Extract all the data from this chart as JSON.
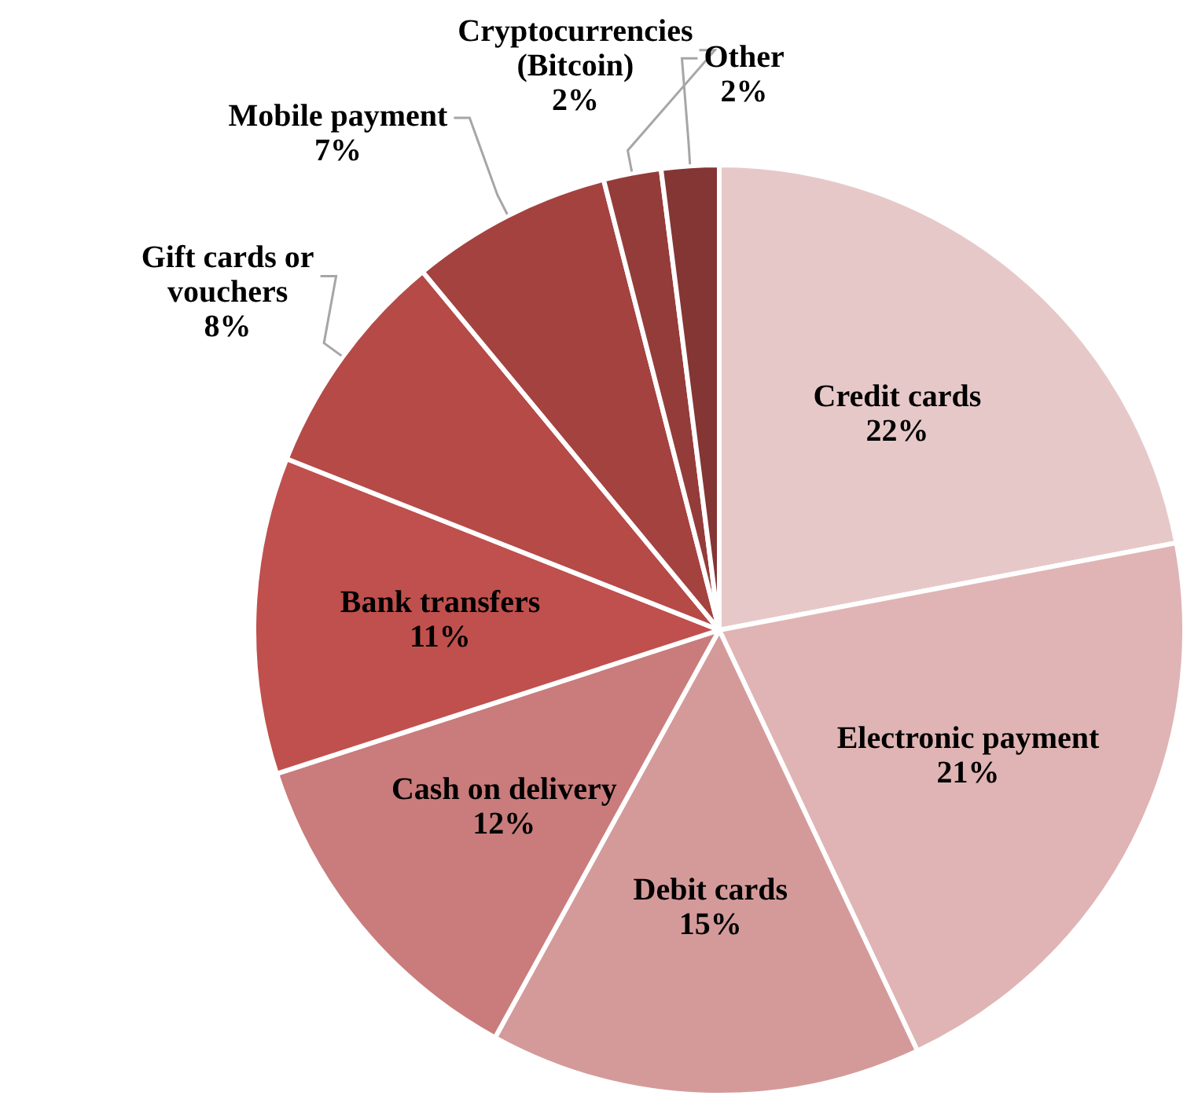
{
  "chart_data": {
    "type": "pie",
    "categories": [
      "Credit cards",
      "Electronic payment",
      "Debit cards",
      "Cash on delivery",
      "Bank transfers",
      "Gift cards or vouchers",
      "Mobile payment",
      "Cryptocurrencies (Bitcoin)",
      "Other"
    ],
    "values": [
      22,
      21,
      15,
      12,
      11,
      8,
      7,
      2,
      2
    ],
    "colors": [
      "#e7c8c8",
      "#e0b4b4",
      "#d49a9a",
      "#c97c7b",
      "#c0504d",
      "#b54a47",
      "#a44240",
      "#943c39",
      "#843634"
    ],
    "value_labels": [
      "22%",
      "21%",
      "15%",
      "12%",
      "11%",
      "8%",
      "7%",
      "2%",
      "2%"
    ],
    "legend": false
  }
}
